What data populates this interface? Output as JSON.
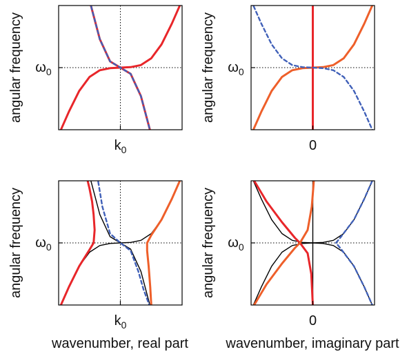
{
  "figure": {
    "xlabel_left": "wavenumber, real part",
    "xlabel_right": "wavenumber, imaginary part",
    "ylabel": "angular frequency",
    "omega_label": "ω",
    "omega_sub": "0",
    "k_label": "k",
    "k_sub": "0",
    "zero_label": "0"
  },
  "colors": {
    "red": "#e8262a",
    "orange": "#ee5f2a",
    "blue_dashed": "#4060b8",
    "black": "#000000",
    "guide": "#000000"
  },
  "chart_data": [
    {
      "id": "top-left",
      "type": "line",
      "x_tick_label": "k0",
      "y_tick_label": "ω0",
      "xlim": [
        -1.2,
        1.2
      ],
      "ylim": [
        -1.2,
        1.2
      ],
      "grid": false,
      "dotted_guides": {
        "x": 0,
        "y": 0
      },
      "series": [
        {
          "color": "red",
          "style": "solid",
          "x": [
            -1.2,
            -1.0,
            -0.8,
            -0.6,
            -0.4,
            -0.2,
            0.0,
            0.2,
            0.4,
            0.6,
            0.8,
            1.0,
            1.2
          ],
          "y": [
            -1.3,
            -0.85,
            -0.45,
            -0.18,
            -0.05,
            -0.01,
            0.0,
            0.01,
            0.05,
            0.18,
            0.45,
            0.85,
            1.3
          ]
        },
        {
          "color": "red",
          "style": "solid",
          "x": [
            -0.6,
            -0.4,
            -0.2,
            0.0,
            0.2,
            0.4,
            0.6
          ],
          "y": [
            1.3,
            0.55,
            0.12,
            0.0,
            -0.12,
            -0.55,
            -1.3
          ]
        },
        {
          "color": "blue_dashed",
          "style": "dashed",
          "x": [
            -0.6,
            -0.4,
            -0.2,
            0.0,
            0.2,
            0.4,
            0.6
          ],
          "y": [
            1.3,
            0.55,
            0.12,
            0.0,
            -0.12,
            -0.55,
            -1.3
          ]
        }
      ]
    },
    {
      "id": "top-right",
      "type": "line",
      "x_tick_label": "0",
      "y_tick_label": "ω0",
      "xlim": [
        -1.2,
        1.2
      ],
      "ylim": [
        -1.2,
        1.2
      ],
      "grid": false,
      "dotted_guides": {
        "x": 0,
        "y": 0
      },
      "series": [
        {
          "color": "orange",
          "style": "solid",
          "x": [
            -1.2,
            -1.0,
            -0.8,
            -0.6,
            -0.4,
            -0.2,
            0.0,
            0.2,
            0.4,
            0.6,
            0.8,
            1.0,
            1.2
          ],
          "y": [
            -1.3,
            -0.85,
            -0.45,
            -0.18,
            -0.05,
            -0.01,
            0.0,
            0.01,
            0.05,
            0.18,
            0.45,
            0.85,
            1.3
          ]
        },
        {
          "color": "blue_dashed",
          "style": "dashed",
          "x": [
            -1.2,
            -1.0,
            -0.8,
            -0.6,
            -0.4,
            -0.2,
            0.0,
            0.2,
            0.4,
            0.6,
            0.8,
            1.0,
            1.2
          ],
          "y": [
            1.3,
            0.85,
            0.45,
            0.18,
            0.05,
            0.01,
            0.0,
            -0.01,
            -0.05,
            -0.18,
            -0.45,
            -0.85,
            -1.3
          ]
        },
        {
          "color": "red",
          "style": "solid",
          "x": [
            0,
            0
          ],
          "y": [
            -1.2,
            1.2
          ]
        }
      ]
    },
    {
      "id": "bottom-left",
      "type": "line",
      "x_tick_label": "k0",
      "y_tick_label": "ω0",
      "xlim": [
        -1.2,
        1.2
      ],
      "ylim": [
        -1.2,
        1.2
      ],
      "grid": false,
      "dotted_guides": {
        "x": 0,
        "y": 0
      },
      "series": [
        {
          "color": "black",
          "style": "solid",
          "x": [
            -1.2,
            -1.0,
            -0.8,
            -0.6,
            -0.4,
            -0.2,
            0.0,
            0.2,
            0.4,
            0.6,
            0.8,
            1.0,
            1.2
          ],
          "y": [
            -1.3,
            -0.85,
            -0.45,
            -0.18,
            -0.05,
            -0.01,
            0.0,
            0.01,
            0.05,
            0.18,
            0.45,
            0.85,
            1.3
          ]
        },
        {
          "color": "black",
          "style": "solid",
          "x": [
            -0.6,
            -0.4,
            -0.2,
            0.0,
            0.2,
            0.4,
            0.6
          ],
          "y": [
            1.3,
            0.55,
            0.12,
            0.0,
            -0.12,
            -0.55,
            -1.3
          ]
        },
        {
          "color": "red",
          "style": "solid",
          "x": [
            -1.2,
            -1.0,
            -0.8,
            -0.6,
            -0.52,
            -0.5,
            -0.52,
            -0.55,
            -0.6,
            -0.66
          ],
          "y": [
            -1.3,
            -0.85,
            -0.45,
            -0.13,
            0.0,
            0.25,
            0.55,
            0.8,
            1.05,
            1.3
          ]
        },
        {
          "color": "orange",
          "style": "solid",
          "x": [
            0.6,
            0.58,
            0.55,
            0.52,
            0.52,
            0.6,
            0.8,
            1.0,
            1.2
          ],
          "y": [
            -1.2,
            -0.85,
            -0.45,
            -0.15,
            0.0,
            0.15,
            0.45,
            0.85,
            1.3
          ]
        },
        {
          "color": "blue_dashed",
          "style": "dashed",
          "x": [
            -0.45,
            -0.35,
            -0.2,
            0.0,
            0.2,
            0.35,
            0.45,
            0.6
          ],
          "y": [
            1.3,
            0.7,
            0.18,
            0.0,
            -0.15,
            -0.55,
            -0.9,
            -1.3
          ]
        }
      ]
    },
    {
      "id": "bottom-right",
      "type": "line",
      "x_tick_label": "0",
      "y_tick_label": "ω0",
      "xlim": [
        -1.2,
        1.2
      ],
      "ylim": [
        -1.2,
        1.2
      ],
      "grid": false,
      "dotted_guides": {
        "x": 0,
        "y": 0
      },
      "series": [
        {
          "color": "black",
          "style": "solid",
          "x": [
            -1.2,
            -1.0,
            -0.8,
            -0.6,
            -0.4,
            -0.2,
            0.0,
            0.2,
            0.4,
            0.6,
            0.8,
            1.0,
            1.2
          ],
          "y": [
            -1.3,
            -0.85,
            -0.45,
            -0.18,
            -0.05,
            -0.01,
            0.0,
            0.01,
            0.05,
            0.18,
            0.45,
            0.85,
            1.3
          ]
        },
        {
          "color": "black",
          "style": "solid",
          "x": [
            -1.2,
            -1.0,
            -0.8,
            -0.6,
            -0.4,
            -0.2,
            0.0,
            0.2,
            0.4,
            0.6,
            0.8,
            1.0,
            1.2
          ],
          "y": [
            1.3,
            0.85,
            0.45,
            0.18,
            0.05,
            0.01,
            0.0,
            -0.01,
            -0.05,
            -0.18,
            -0.45,
            -0.85,
            -1.3
          ]
        },
        {
          "color": "black",
          "style": "solid",
          "x": [
            0,
            0
          ],
          "y": [
            -1.2,
            1.2
          ]
        },
        {
          "color": "red",
          "style": "solid",
          "x": [
            -1.2,
            -0.9,
            -0.6,
            -0.35,
            -0.25,
            -0.1,
            -0.03,
            0.0
          ],
          "y": [
            1.3,
            0.8,
            0.4,
            0.1,
            0.0,
            -0.2,
            -0.6,
            -1.2
          ]
        },
        {
          "color": "orange",
          "style": "solid",
          "x": [
            -1.2,
            -0.9,
            -0.6,
            -0.35,
            -0.25,
            -0.1,
            -0.02,
            0.02
          ],
          "y": [
            -1.3,
            -0.8,
            -0.4,
            -0.1,
            0.0,
            0.25,
            0.7,
            1.2
          ]
        },
        {
          "color": "blue_dashed",
          "style": "dashed",
          "x": [
            1.2,
            1.0,
            0.8,
            0.55,
            0.45,
            0.55,
            0.8,
            1.0,
            1.2
          ],
          "y": [
            1.3,
            0.85,
            0.45,
            0.12,
            0.0,
            -0.12,
            -0.45,
            -0.85,
            -1.3
          ]
        }
      ]
    }
  ]
}
